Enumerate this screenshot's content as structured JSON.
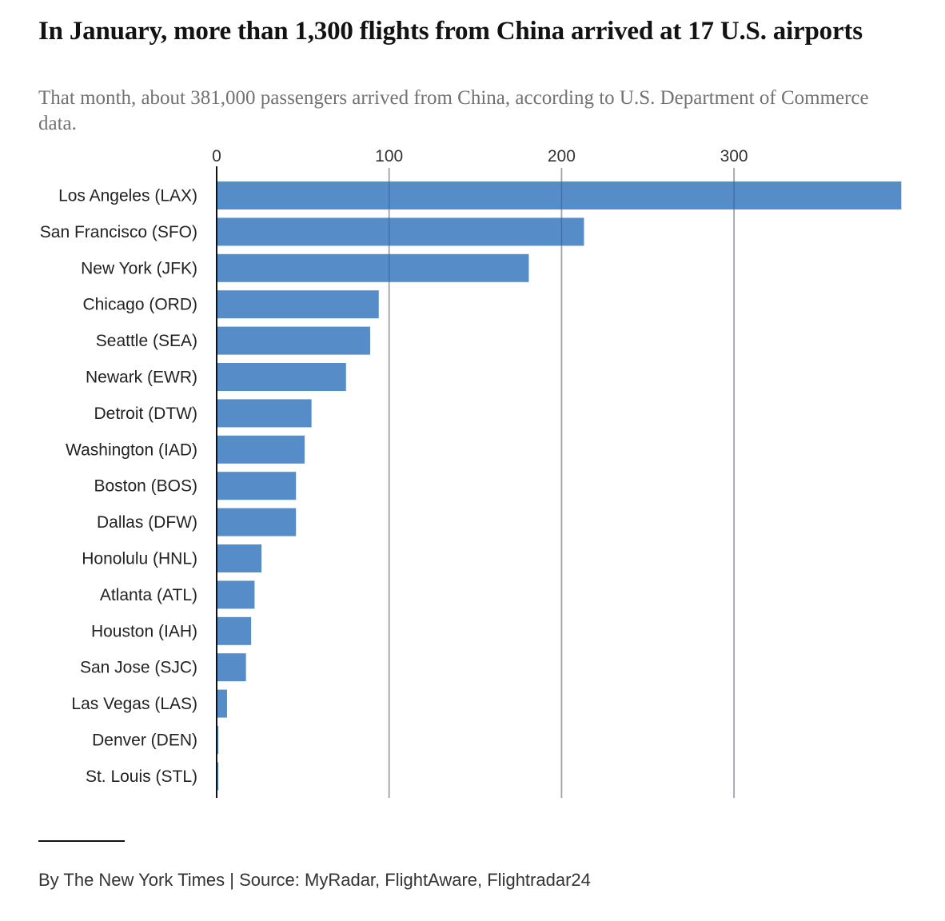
{
  "chart_data": {
    "type": "bar",
    "orientation": "horizontal",
    "title": "In January, more than 1,300 flights from China arrived at 17 U.S. airports",
    "subtitle": "That month, about 381,000 passengers arrived from China, according to U.S. Department of Commerce data.",
    "xlabel": "",
    "ylabel": "",
    "xlim": [
      0,
      397
    ],
    "ticks": [
      "0",
      "100",
      "200",
      "300"
    ],
    "tick_values": [
      0,
      100,
      200,
      300
    ],
    "categories": [
      "Los Angeles (LAX)",
      "San Francisco (SFO)",
      "New York (JFK)",
      "Chicago (ORD)",
      "Seattle (SEA)",
      "Newark (EWR)",
      "Detroit (DTW)",
      "Washington (IAD)",
      "Boston (BOS)",
      "Dallas (DFW)",
      "Honolulu (HNL)",
      "Atlanta (ATL)",
      "Houston (IAH)",
      "San Jose (SJC)",
      "Las Vegas (LAS)",
      "Denver (DEN)",
      "St. Louis (STL)"
    ],
    "values": [
      397,
      213,
      181,
      94,
      89,
      75,
      55,
      51,
      46,
      46,
      26,
      22,
      20,
      17,
      6,
      1,
      1
    ],
    "bar_color": "#4f87c6",
    "grid": true
  },
  "footer": {
    "credit": "By The New York Times | Source: MyRadar, FlightAware, Flightradar24"
  }
}
